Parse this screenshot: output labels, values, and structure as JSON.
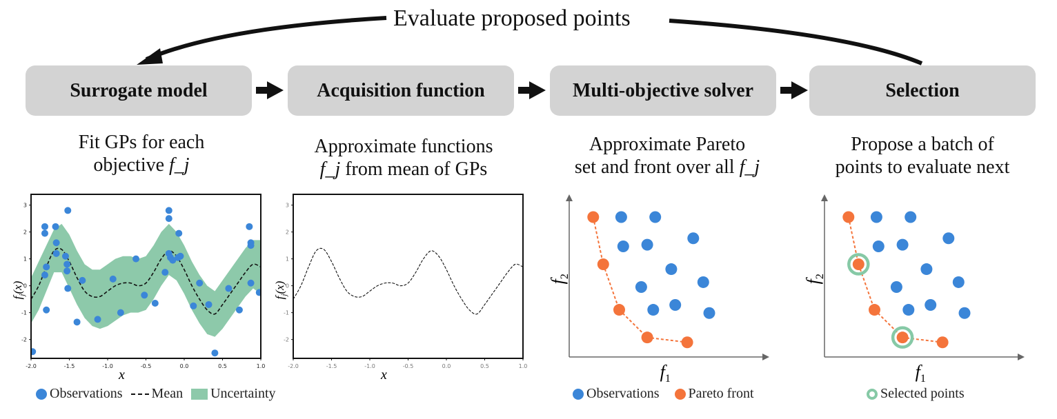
{
  "top_label": "Evaluate proposed points",
  "steps": [
    {
      "title": "Surrogate model",
      "desc_line1": "Fit GPs for each",
      "desc_line2": "objective ",
      "desc_math": "f_j"
    },
    {
      "title": "Acquisition function",
      "desc_line1": "Approximate functions",
      "desc_math": "f_j",
      "desc_line2": " from mean of GPs"
    },
    {
      "title": "Multi-objective solver",
      "desc_line1": "Approximate Pareto",
      "desc_line2": "set and front over all ",
      "desc_math": "f_j"
    },
    {
      "title": "Selection",
      "desc_line1": "Propose a batch of",
      "desc_line2": "points to evaluate next"
    }
  ],
  "legends": {
    "observations": "Observations",
    "mean": "Mean",
    "uncertainty": "Uncertainty",
    "pareto_front": "Pareto front",
    "selected": "Selected points"
  },
  "colors": {
    "observation": "#3b86d8",
    "pareto": "#f4743b",
    "uncertainty": "#8dc9aa",
    "selected_ring": "#86c9a6",
    "box": "#d3d3d3"
  },
  "chart_data": [
    {
      "type": "scatter",
      "name": "surrogate-gp-plot",
      "xlabel": "x",
      "ylabel": "f_j(x)",
      "xlim": [
        -2.0,
        1.0
      ],
      "ylim": [
        -2.7,
        3.4
      ],
      "xticks": [
        "-2.0",
        "-1.5",
        "-1.0",
        "-0.5",
        "0.0",
        "0.5",
        "1.0"
      ],
      "yticks": [
        "-2",
        "-1",
        "0",
        "1",
        "2",
        "3"
      ],
      "mean": {
        "x": [
          -2.0,
          -1.9,
          -1.8,
          -1.7,
          -1.6,
          -1.5,
          -1.4,
          -1.3,
          -1.2,
          -1.1,
          -1.0,
          -0.9,
          -0.8,
          -0.7,
          -0.6,
          -0.5,
          -0.4,
          -0.3,
          -0.2,
          -0.1,
          0.0,
          0.1,
          0.2,
          0.3,
          0.4,
          0.5,
          0.6,
          0.7,
          0.8,
          0.9,
          1.0
        ],
        "y": [
          -0.5,
          0.0,
          0.7,
          1.3,
          1.35,
          0.9,
          0.3,
          -0.2,
          -0.4,
          -0.4,
          -0.2,
          0.0,
          0.1,
          0.1,
          0.0,
          0.1,
          0.5,
          1.0,
          1.3,
          1.1,
          0.6,
          0.0,
          -0.5,
          -0.9,
          -1.05,
          -0.7,
          -0.3,
          0.1,
          0.5,
          0.8,
          0.7
        ]
      },
      "band": {
        "upper": [
          0.3,
          0.9,
          1.5,
          2.1,
          2.3,
          1.9,
          1.3,
          0.8,
          0.6,
          0.6,
          0.8,
          1.0,
          1.1,
          1.1,
          1.0,
          1.1,
          1.5,
          2.0,
          2.3,
          2.0,
          1.5,
          0.9,
          0.4,
          0.0,
          -0.2,
          0.2,
          0.6,
          1.0,
          1.4,
          1.7,
          1.7
        ],
        "lower": [
          -1.4,
          -0.9,
          -0.2,
          0.5,
          0.5,
          -0.1,
          -0.7,
          -1.2,
          -1.5,
          -1.6,
          -1.5,
          -1.3,
          -1.1,
          -1.0,
          -1.0,
          -0.9,
          -0.5,
          0.0,
          0.4,
          0.2,
          -0.3,
          -0.9,
          -1.4,
          -1.8,
          -1.9,
          -1.6,
          -1.2,
          -0.8,
          -0.4,
          -0.1,
          -0.3
        ]
      },
      "points": [
        [
          -1.98,
          -2.45
        ],
        [
          -1.82,
          0.4
        ],
        [
          -1.8,
          0.7
        ],
        [
          -1.82,
          1.95
        ],
        [
          -1.82,
          2.2
        ],
        [
          -1.8,
          -0.9
        ],
        [
          -1.68,
          2.2
        ],
        [
          -1.67,
          1.6
        ],
        [
          -1.67,
          1.2
        ],
        [
          -1.55,
          1.1
        ],
        [
          -1.52,
          2.8
        ],
        [
          -1.53,
          0.8
        ],
        [
          -1.53,
          0.55
        ],
        [
          -1.52,
          -0.1
        ],
        [
          -1.4,
          -1.35
        ],
        [
          -1.33,
          0.2
        ],
        [
          -1.13,
          -1.25
        ],
        [
          -0.93,
          0.25
        ],
        [
          -0.83,
          -1.0
        ],
        [
          -0.63,
          1.0
        ],
        [
          -0.52,
          -0.35
        ],
        [
          -0.38,
          -0.65
        ],
        [
          -0.25,
          0.5
        ],
        [
          -0.2,
          2.8
        ],
        [
          -0.2,
          2.5
        ],
        [
          -0.2,
          1.2
        ],
        [
          -0.18,
          1.05
        ],
        [
          -0.15,
          0.95
        ],
        [
          -0.08,
          1.05
        ],
        [
          -0.05,
          1.1
        ],
        [
          -0.07,
          1.95
        ],
        [
          0.12,
          -0.75
        ],
        [
          0.2,
          0.1
        ],
        [
          0.32,
          -0.7
        ],
        [
          0.4,
          -2.5
        ],
        [
          0.58,
          -0.1
        ],
        [
          0.72,
          -0.9
        ],
        [
          0.85,
          2.2
        ],
        [
          0.87,
          1.6
        ],
        [
          0.87,
          1.5
        ],
        [
          0.87,
          0.1
        ],
        [
          0.98,
          -0.25
        ]
      ]
    },
    {
      "type": "line",
      "name": "acquisition-mean-plot",
      "xlabel": "x",
      "ylabel": "f_j(x)",
      "xlim": [
        -2.0,
        1.0
      ],
      "ylim": [
        -2.7,
        3.4
      ],
      "xticks": [
        "-2.0",
        "-1.5",
        "-1.0",
        "-0.5",
        "0.0",
        "0.5",
        "1.0"
      ],
      "yticks": [
        "-2",
        "-1",
        "0",
        "1",
        "2",
        "3"
      ],
      "x": [
        -2.0,
        -1.9,
        -1.8,
        -1.7,
        -1.6,
        -1.5,
        -1.4,
        -1.3,
        -1.2,
        -1.1,
        -1.0,
        -0.9,
        -0.8,
        -0.7,
        -0.6,
        -0.5,
        -0.4,
        -0.3,
        -0.2,
        -0.1,
        0.0,
        0.1,
        0.2,
        0.3,
        0.4,
        0.5,
        0.6,
        0.7,
        0.8,
        0.9,
        1.0
      ],
      "y": [
        -0.5,
        0.0,
        0.7,
        1.3,
        1.35,
        0.9,
        0.3,
        -0.2,
        -0.4,
        -0.4,
        -0.2,
        0.0,
        0.1,
        0.1,
        0.0,
        0.1,
        0.5,
        1.0,
        1.3,
        1.1,
        0.6,
        0.0,
        -0.5,
        -0.9,
        -1.05,
        -0.7,
        -0.3,
        0.1,
        0.5,
        0.8,
        0.7
      ]
    },
    {
      "type": "scatter",
      "name": "pareto-plot",
      "xlabel": "f_1",
      "ylabel": "f_2",
      "observations": [
        [
          0.26,
          0.86
        ],
        [
          0.43,
          0.86
        ],
        [
          0.27,
          0.68
        ],
        [
          0.39,
          0.69
        ],
        [
          0.62,
          0.73
        ],
        [
          0.51,
          0.54
        ],
        [
          0.36,
          0.43
        ],
        [
          0.67,
          0.46
        ],
        [
          0.42,
          0.29
        ],
        [
          0.53,
          0.32
        ],
        [
          0.7,
          0.27
        ]
      ],
      "pareto": [
        [
          0.12,
          0.86
        ],
        [
          0.17,
          0.57
        ],
        [
          0.25,
          0.29
        ],
        [
          0.39,
          0.12
        ],
        [
          0.59,
          0.09
        ]
      ],
      "selected_indices": [
        1,
        3
      ]
    }
  ]
}
